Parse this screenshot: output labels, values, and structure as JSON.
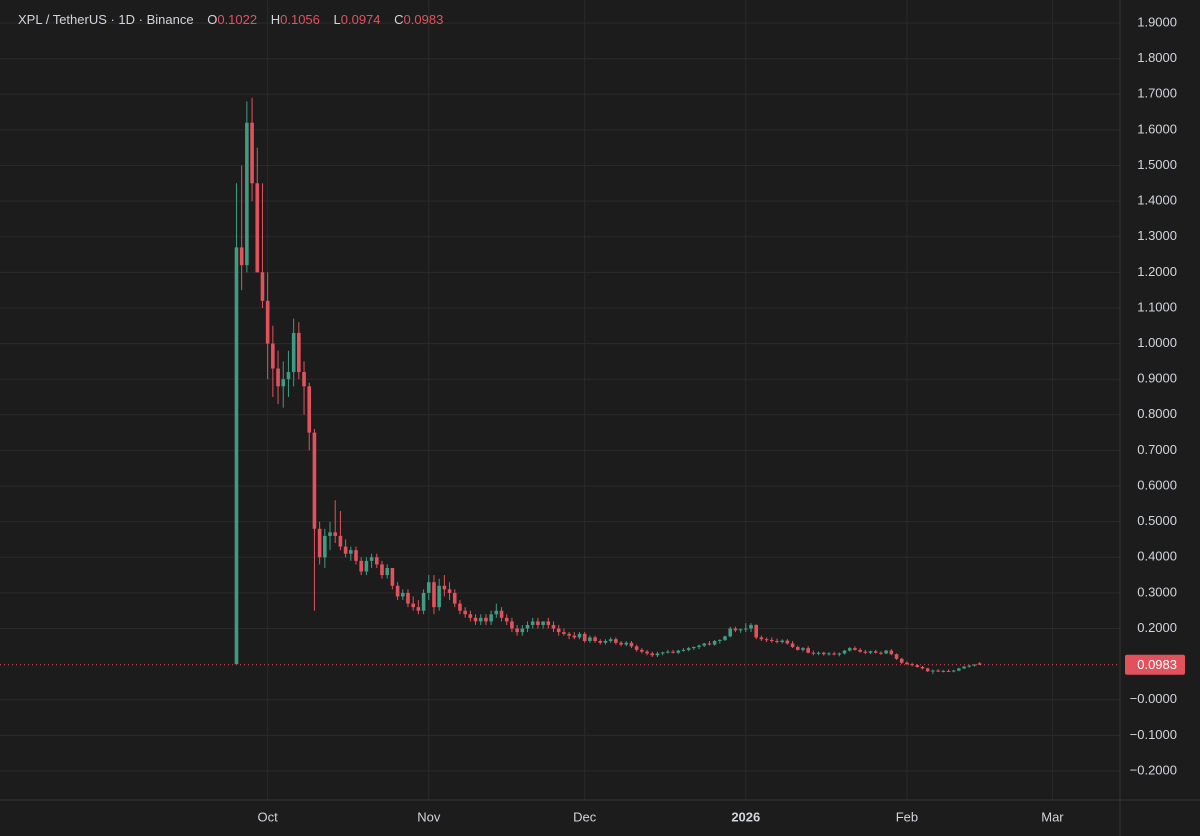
{
  "chart_data": {
    "type": "candlestick",
    "title": "XPL / TetherUS · 1D · Binance",
    "ohlc_labels": [
      "O",
      "H",
      "L",
      "C"
    ],
    "up_color": "#3f9b82",
    "down_color": "#e2525c",
    "grid": true,
    "xlim": [
      -51.5,
      164
    ],
    "xticks": [
      {
        "value": 0,
        "label": "Oct"
      },
      {
        "value": 31,
        "label": "Nov"
      },
      {
        "value": 61,
        "label": "Dec"
      },
      {
        "value": 92,
        "label": "2026"
      },
      {
        "value": 123,
        "label": "Feb"
      },
      {
        "value": 151,
        "label": "Mar"
      }
    ],
    "ylim": [
      -0.2,
      1.9
    ],
    "yticks": [
      {
        "value": 1.9,
        "label": "1.9000"
      },
      {
        "value": 1.8,
        "label": "1.8000"
      },
      {
        "value": 1.7,
        "label": "1.7000"
      },
      {
        "value": 1.6,
        "label": "1.6000"
      },
      {
        "value": 1.5,
        "label": "1.5000"
      },
      {
        "value": 1.4,
        "label": "1.4000"
      },
      {
        "value": 1.3,
        "label": "1.3000"
      },
      {
        "value": 1.2,
        "label": "1.2000"
      },
      {
        "value": 1.1,
        "label": "1.1000"
      },
      {
        "value": 1.0,
        "label": "1.0000"
      },
      {
        "value": 0.9,
        "label": "0.9000"
      },
      {
        "value": 0.8,
        "label": "0.8000"
      },
      {
        "value": 0.7,
        "label": "0.7000"
      },
      {
        "value": 0.6,
        "label": "0.6000"
      },
      {
        "value": 0.5,
        "label": "0.5000"
      },
      {
        "value": 0.4,
        "label": "0.4000"
      },
      {
        "value": 0.3,
        "label": "0.3000"
      },
      {
        "value": 0.2,
        "label": "0.2000"
      },
      {
        "value": 0,
        "label": "−0.0000"
      },
      {
        "value": -0.1,
        "label": "−0.1000"
      },
      {
        "value": -0.2,
        "label": "−0.2000"
      }
    ],
    "x": [
      -6,
      -5,
      -4,
      -3,
      -2,
      -1,
      0,
      1,
      2,
      3,
      4,
      5,
      6,
      7,
      8,
      9,
      10,
      11,
      12,
      13,
      14,
      15,
      16,
      17,
      18,
      19,
      20,
      21,
      22,
      23,
      24,
      25,
      26,
      27,
      28,
      29,
      30,
      31,
      32,
      33,
      34,
      35,
      36,
      37,
      38,
      39,
      40,
      41,
      42,
      43,
      44,
      45,
      46,
      47,
      48,
      49,
      50,
      51,
      52,
      53,
      54,
      55,
      56,
      57,
      58,
      59,
      60,
      61,
      62,
      63,
      64,
      65,
      66,
      67,
      68,
      69,
      70,
      71,
      72,
      73,
      74,
      75,
      76,
      77,
      78,
      79,
      80,
      81,
      82,
      83,
      84,
      85,
      86,
      87,
      88,
      89,
      90,
      91,
      92,
      93,
      94,
      95,
      96,
      97,
      98,
      99,
      100,
      101,
      102,
      103,
      104,
      105,
      106,
      107,
      108,
      109,
      110,
      111,
      112,
      113,
      114,
      115,
      116,
      117,
      118,
      119,
      120,
      121,
      122,
      123,
      124,
      125,
      126,
      127,
      128,
      129,
      130,
      131,
      132,
      133,
      134,
      135,
      136,
      137
    ],
    "open": [
      0.1,
      1.27,
      1.22,
      1.62,
      1.45,
      1.2,
      1.12,
      1.0,
      0.93,
      0.88,
      0.9,
      0.92,
      1.03,
      0.92,
      0.88,
      0.75,
      0.48,
      0.4,
      0.46,
      0.47,
      0.46,
      0.43,
      0.41,
      0.42,
      0.39,
      0.36,
      0.39,
      0.4,
      0.38,
      0.35,
      0.37,
      0.32,
      0.29,
      0.3,
      0.27,
      0.26,
      0.25,
      0.3,
      0.33,
      0.26,
      0.32,
      0.31,
      0.3,
      0.27,
      0.25,
      0.24,
      0.23,
      0.22,
      0.23,
      0.22,
      0.24,
      0.25,
      0.23,
      0.22,
      0.2,
      0.19,
      0.2,
      0.21,
      0.22,
      0.21,
      0.22,
      0.21,
      0.2,
      0.19,
      0.185,
      0.18,
      0.175,
      0.185,
      0.165,
      0.175,
      0.165,
      0.16,
      0.165,
      0.17,
      0.16,
      0.155,
      0.16,
      0.15,
      0.14,
      0.135,
      0.13,
      0.125,
      0.13,
      0.133,
      0.135,
      0.132,
      0.138,
      0.14,
      0.145,
      0.148,
      0.152,
      0.158,
      0.155,
      0.165,
      0.168,
      0.178,
      0.2,
      0.195,
      0.198,
      0.2,
      0.21,
      0.175,
      0.17,
      0.168,
      0.165,
      0.162,
      0.166,
      0.158,
      0.148,
      0.14,
      0.145,
      0.132,
      0.13,
      0.132,
      0.128,
      0.13,
      0.127,
      0.13,
      0.138,
      0.145,
      0.14,
      0.135,
      0.132,
      0.136,
      0.132,
      0.13,
      0.138,
      0.128,
      0.115,
      0.104,
      0.1,
      0.097,
      0.092,
      0.088,
      0.08,
      0.082,
      0.08,
      0.081,
      0.08,
      0.082,
      0.088,
      0.093,
      0.096,
      0.1022
    ],
    "high": [
      1.45,
      1.5,
      1.68,
      1.69,
      1.55,
      1.45,
      1.2,
      1.05,
      0.98,
      0.95,
      0.98,
      1.07,
      1.06,
      0.95,
      0.89,
      0.76,
      0.5,
      0.48,
      0.5,
      0.56,
      0.53,
      0.45,
      0.43,
      0.43,
      0.4,
      0.4,
      0.41,
      0.41,
      0.39,
      0.38,
      0.37,
      0.33,
      0.31,
      0.31,
      0.29,
      0.28,
      0.31,
      0.35,
      0.35,
      0.34,
      0.35,
      0.33,
      0.31,
      0.28,
      0.26,
      0.25,
      0.24,
      0.24,
      0.24,
      0.25,
      0.27,
      0.26,
      0.24,
      0.23,
      0.21,
      0.21,
      0.22,
      0.23,
      0.23,
      0.22,
      0.23,
      0.22,
      0.21,
      0.2,
      0.19,
      0.19,
      0.19,
      0.19,
      0.18,
      0.18,
      0.17,
      0.17,
      0.175,
      0.175,
      0.165,
      0.165,
      0.165,
      0.155,
      0.145,
      0.14,
      0.135,
      0.135,
      0.135,
      0.14,
      0.14,
      0.14,
      0.145,
      0.148,
      0.15,
      0.155,
      0.16,
      0.165,
      0.168,
      0.17,
      0.18,
      0.205,
      0.205,
      0.2,
      0.215,
      0.215,
      0.212,
      0.18,
      0.175,
      0.175,
      0.172,
      0.17,
      0.17,
      0.165,
      0.152,
      0.148,
      0.15,
      0.138,
      0.136,
      0.135,
      0.134,
      0.135,
      0.133,
      0.14,
      0.148,
      0.15,
      0.145,
      0.14,
      0.138,
      0.14,
      0.136,
      0.14,
      0.142,
      0.13,
      0.118,
      0.108,
      0.104,
      0.1,
      0.095,
      0.09,
      0.085,
      0.086,
      0.084,
      0.085,
      0.084,
      0.09,
      0.095,
      0.098,
      0.1,
      0.1056
    ],
    "low": [
      0.1,
      1.15,
      1.2,
      1.4,
      1.2,
      1.1,
      0.9,
      0.85,
      0.83,
      0.82,
      0.85,
      0.88,
      0.9,
      0.8,
      0.7,
      0.25,
      0.38,
      0.37,
      0.42,
      0.44,
      0.42,
      0.4,
      0.39,
      0.38,
      0.35,
      0.35,
      0.37,
      0.37,
      0.34,
      0.34,
      0.31,
      0.28,
      0.28,
      0.26,
      0.25,
      0.24,
      0.24,
      0.28,
      0.24,
      0.25,
      0.29,
      0.28,
      0.26,
      0.24,
      0.23,
      0.22,
      0.21,
      0.21,
      0.21,
      0.21,
      0.23,
      0.22,
      0.21,
      0.19,
      0.18,
      0.18,
      0.19,
      0.2,
      0.2,
      0.2,
      0.2,
      0.19,
      0.18,
      0.18,
      0.17,
      0.17,
      0.17,
      0.16,
      0.16,
      0.16,
      0.155,
      0.155,
      0.16,
      0.155,
      0.15,
      0.15,
      0.145,
      0.135,
      0.13,
      0.125,
      0.12,
      0.12,
      0.125,
      0.13,
      0.13,
      0.128,
      0.135,
      0.136,
      0.14,
      0.142,
      0.148,
      0.152,
      0.152,
      0.158,
      0.165,
      0.175,
      0.19,
      0.188,
      0.19,
      0.19,
      0.17,
      0.165,
      0.162,
      0.16,
      0.158,
      0.158,
      0.155,
      0.145,
      0.138,
      0.135,
      0.13,
      0.125,
      0.125,
      0.124,
      0.124,
      0.125,
      0.122,
      0.127,
      0.135,
      0.138,
      0.132,
      0.128,
      0.128,
      0.13,
      0.126,
      0.128,
      0.125,
      0.112,
      0.1,
      0.098,
      0.094,
      0.09,
      0.085,
      0.078,
      0.072,
      0.078,
      0.077,
      0.078,
      0.077,
      0.08,
      0.086,
      0.09,
      0.093,
      0.0974
    ],
    "close": [
      1.27,
      1.22,
      1.62,
      1.45,
      1.2,
      1.12,
      1.0,
      0.93,
      0.88,
      0.9,
      0.92,
      1.03,
      0.92,
      0.88,
      0.75,
      0.48,
      0.4,
      0.46,
      0.47,
      0.46,
      0.43,
      0.41,
      0.42,
      0.39,
      0.36,
      0.39,
      0.4,
      0.38,
      0.35,
      0.37,
      0.32,
      0.29,
      0.3,
      0.27,
      0.26,
      0.25,
      0.3,
      0.33,
      0.26,
      0.32,
      0.31,
      0.3,
      0.27,
      0.25,
      0.24,
      0.23,
      0.22,
      0.23,
      0.22,
      0.24,
      0.25,
      0.23,
      0.22,
      0.2,
      0.19,
      0.2,
      0.21,
      0.22,
      0.21,
      0.22,
      0.21,
      0.2,
      0.19,
      0.185,
      0.18,
      0.175,
      0.185,
      0.165,
      0.175,
      0.165,
      0.16,
      0.165,
      0.17,
      0.16,
      0.155,
      0.16,
      0.15,
      0.14,
      0.135,
      0.13,
      0.125,
      0.13,
      0.133,
      0.135,
      0.132,
      0.138,
      0.14,
      0.145,
      0.148,
      0.152,
      0.158,
      0.155,
      0.165,
      0.168,
      0.178,
      0.2,
      0.195,
      0.198,
      0.2,
      0.21,
      0.175,
      0.17,
      0.168,
      0.165,
      0.162,
      0.166,
      0.158,
      0.148,
      0.14,
      0.145,
      0.132,
      0.13,
      0.132,
      0.128,
      0.13,
      0.127,
      0.13,
      0.138,
      0.145,
      0.14,
      0.135,
      0.132,
      0.136,
      0.132,
      0.13,
      0.138,
      0.128,
      0.115,
      0.104,
      0.1,
      0.097,
      0.092,
      0.088,
      0.08,
      0.082,
      0.08,
      0.081,
      0.08,
      0.082,
      0.088,
      0.093,
      0.096,
      0.099,
      0.0983
    ]
  }
}
